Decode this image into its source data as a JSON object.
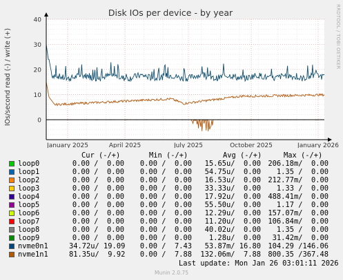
{
  "chart_data": {
    "type": "line",
    "title": "Disk IOs per device - by year",
    "ylabel": "IOs/second read (-) / write (+)",
    "ylim": [
      -8,
      40
    ],
    "yticks": [
      0,
      10,
      20,
      30,
      40
    ],
    "xticks": [
      "January 2025",
      "April 2025",
      "July 2025",
      "October 2025",
      "January 2026"
    ],
    "grid": true,
    "colors": {
      "background": "#f0f0f0",
      "canvas": "#ffffff",
      "major_grid": "#e0a0a0",
      "minor_grid": "#dddddd",
      "nvme0n1": "#0d4d6e",
      "nvme1n1": "#b4590d"
    },
    "series": [
      {
        "name": "nvme0n1",
        "approx": "write stays near 16-21 IO/s through the year, with a spike to about 30 at the start"
      },
      {
        "name": "nvme1n1",
        "approx": "write drops from about 15 to 6 early, rising to about 10 by end of year; reads dip to about -7 around July"
      }
    ]
  },
  "legend": {
    "headers": {
      "cur": "Cur (-/+)",
      "min": "Min (-/+)",
      "avg": "Avg (-/+)",
      "max": "Max (-/+)"
    },
    "rows": [
      {
        "name": "loop0",
        "color": "#00cc00",
        "cur": "0.00 /  0.00",
        "min": "0.00 /  0.00",
        "avg": "15.65u/  0.00",
        "max": "206.18m/  0.00"
      },
      {
        "name": "loop1",
        "color": "#0066b3",
        "cur": "0.00 /  0.00",
        "min": "0.00 /  0.00",
        "avg": "54.75u/  0.00",
        "max": "1.35 /  0.00"
      },
      {
        "name": "loop2",
        "color": "#ff8000",
        "cur": "0.00 /  0.00",
        "min": "0.00 /  0.00",
        "avg": "16.53u/  0.00",
        "max": "212.77m/  0.00"
      },
      {
        "name": "loop3",
        "color": "#ffcc00",
        "cur": "0.00 /  0.00",
        "min": "0.00 /  0.00",
        "avg": "33.33u/  0.00",
        "max": "1.33 /  0.00"
      },
      {
        "name": "loop4",
        "color": "#330099",
        "cur": "0.00 /  0.00",
        "min": "0.00 /  0.00",
        "avg": "17.92u/  0.00",
        "max": "488.41m/  0.00"
      },
      {
        "name": "loop5",
        "color": "#990099",
        "cur": "0.00 /  0.00",
        "min": "0.00 /  0.00",
        "avg": "55.50u/  0.00",
        "max": "1.17 /  0.00"
      },
      {
        "name": "loop6",
        "color": "#ccff00",
        "cur": "0.00 /  0.00",
        "min": "0.00 /  0.00",
        "avg": "12.29u/  0.00",
        "max": "157.07m/  0.00"
      },
      {
        "name": "loop7",
        "color": "#ff0000",
        "cur": "0.00 /  0.00",
        "min": "0.00 /  0.00",
        "avg": "11.20u/  0.00",
        "max": "106.84m/  0.00"
      },
      {
        "name": "loop8",
        "color": "#808080",
        "cur": "0.00 /  0.00",
        "min": "0.00 /  0.00",
        "avg": "40.02u/  0.00",
        "max": "1.35 /  0.00"
      },
      {
        "name": "loop9",
        "color": "#008f00",
        "cur": "0.00 /  0.00",
        "min": "0.00 /  0.00",
        "avg": "1.28u/  0.00",
        "max": "31.42m/  0.00"
      },
      {
        "name": "nvme0n1",
        "color": "#00487d",
        "cur": "34.72u/ 19.09",
        "min": "0.00 /  7.43",
        "avg": "53.87m/ 16.80",
        "max": "104.29 /146.06"
      },
      {
        "name": "nvme1n1",
        "color": "#b35a00",
        "cur": "81.35u/  9.92",
        "min": "0.00 /  7.88",
        "avg": "132.06m/  7.88",
        "max": "800.35 /367.48"
      }
    ]
  },
  "footer": {
    "last_update": "Last update: Mon Jan 26 03:01:11 2026",
    "munin": "Munin 2.0.75",
    "rrdtool": "RRDTOOL / TOBI OETIKER"
  }
}
